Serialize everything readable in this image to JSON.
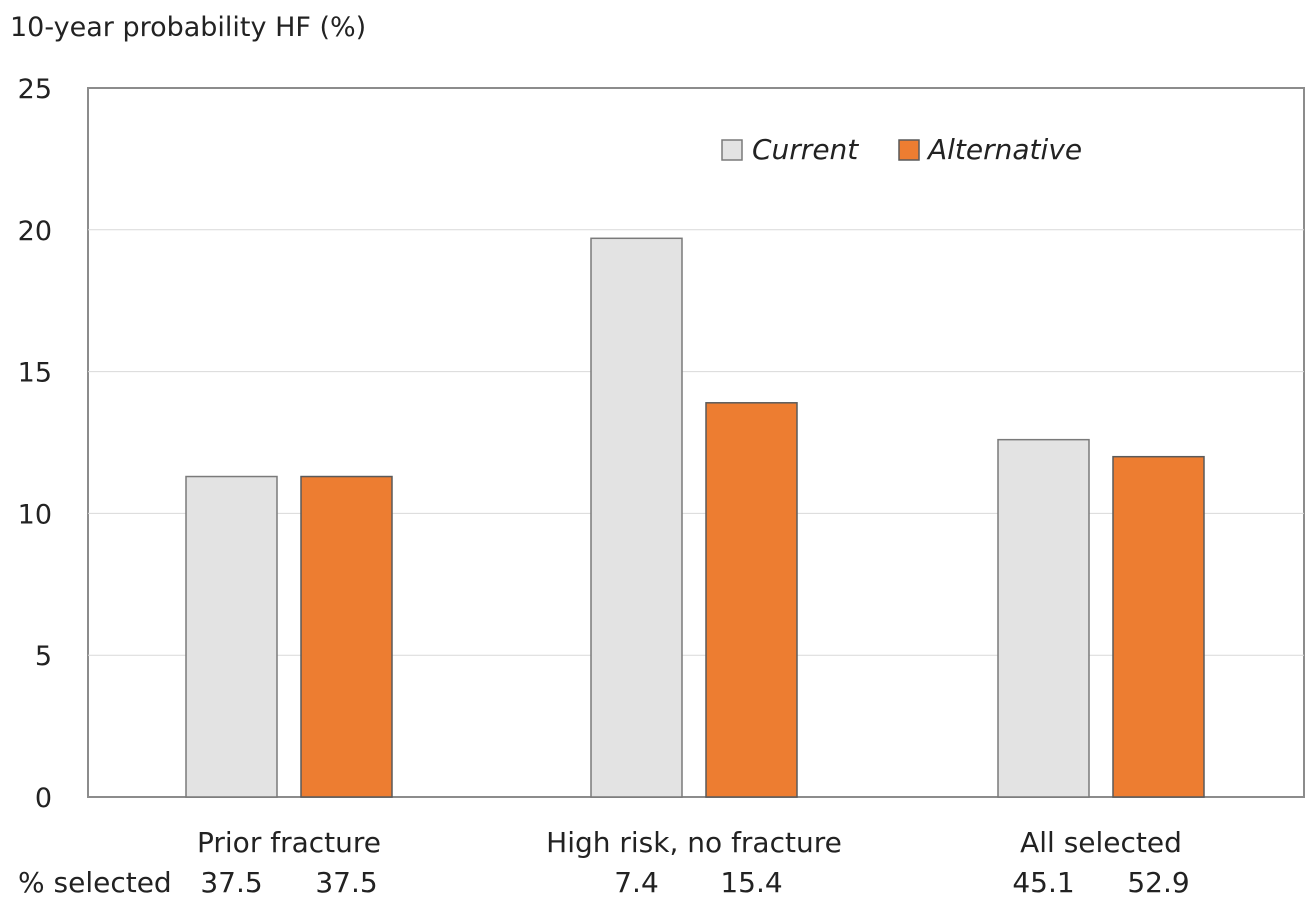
{
  "chart_data": {
    "type": "bar",
    "ylabel": "10-year probability HF (%)",
    "ylim": [
      0,
      25
    ],
    "yticks": [
      0,
      5,
      10,
      15,
      20,
      25
    ],
    "grid": true,
    "legend_position": "top-right",
    "categories": [
      "Prior fracture",
      "High risk, no fracture",
      "All selected"
    ],
    "series": [
      {
        "name": "Current",
        "color": "#e3e3e3",
        "values": [
          11.3,
          19.7,
          12.6
        ]
      },
      {
        "name": "Alternative",
        "color": "#ed7d31",
        "values": [
          11.3,
          13.9,
          12.0
        ]
      }
    ],
    "selected_label": "% selected",
    "selected_values": [
      [
        "37.5",
        "37.5"
      ],
      [
        "7.4",
        "15.4"
      ],
      [
        "45.1",
        "52.9"
      ]
    ]
  }
}
